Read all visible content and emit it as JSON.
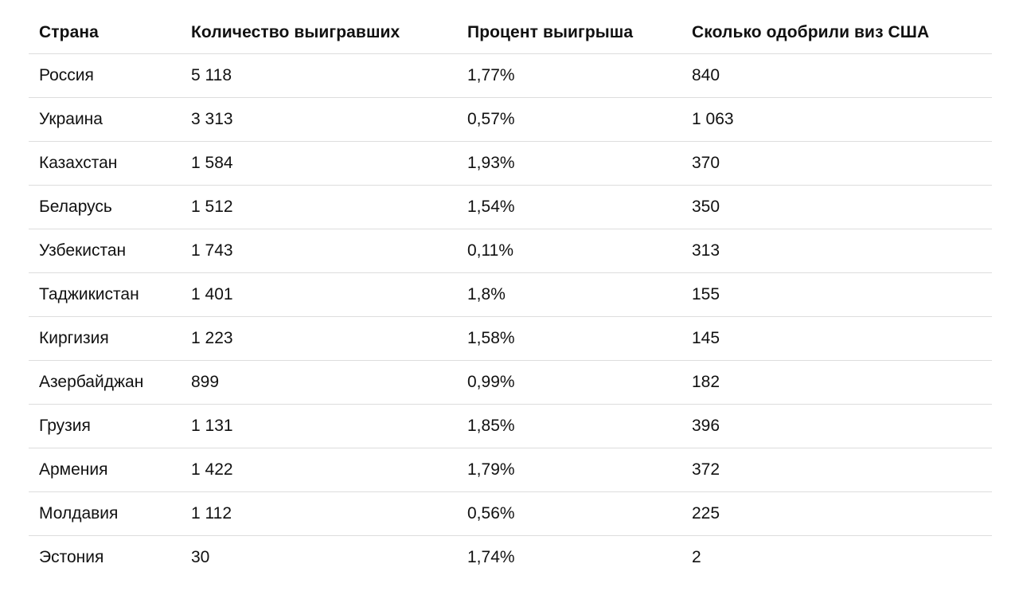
{
  "table": {
    "headers": [
      "Страна",
      "Количество выигравших",
      "Процент выигрыша",
      "Сколько одобрили виз США"
    ],
    "rows": [
      [
        "Россия",
        "5 118",
        "1,77%",
        "840"
      ],
      [
        "Украина",
        "3 313",
        "0,57%",
        "1 063"
      ],
      [
        "Казахстан",
        "1 584",
        "1,93%",
        "370"
      ],
      [
        "Беларусь",
        "1 512",
        "1,54%",
        "350"
      ],
      [
        "Узбекистан",
        "1 743",
        "0,11%",
        "313"
      ],
      [
        "Таджикистан",
        "1 401",
        "1,8%",
        "155"
      ],
      [
        "Киргизия",
        "1 223",
        "1,58%",
        "145"
      ],
      [
        "Азербайджан",
        "899",
        "0,99%",
        "182"
      ],
      [
        "Грузия",
        "1 131",
        "1,85%",
        "396"
      ],
      [
        "Армения",
        "1 422",
        "1,79%",
        "372"
      ],
      [
        "Молдавия",
        "1 112",
        "0,56%",
        "225"
      ],
      [
        "Эстония",
        "30",
        "1,74%",
        "2"
      ]
    ]
  },
  "colors": {
    "text": "#111111",
    "divider": "#dddddd",
    "background": "#ffffff"
  }
}
